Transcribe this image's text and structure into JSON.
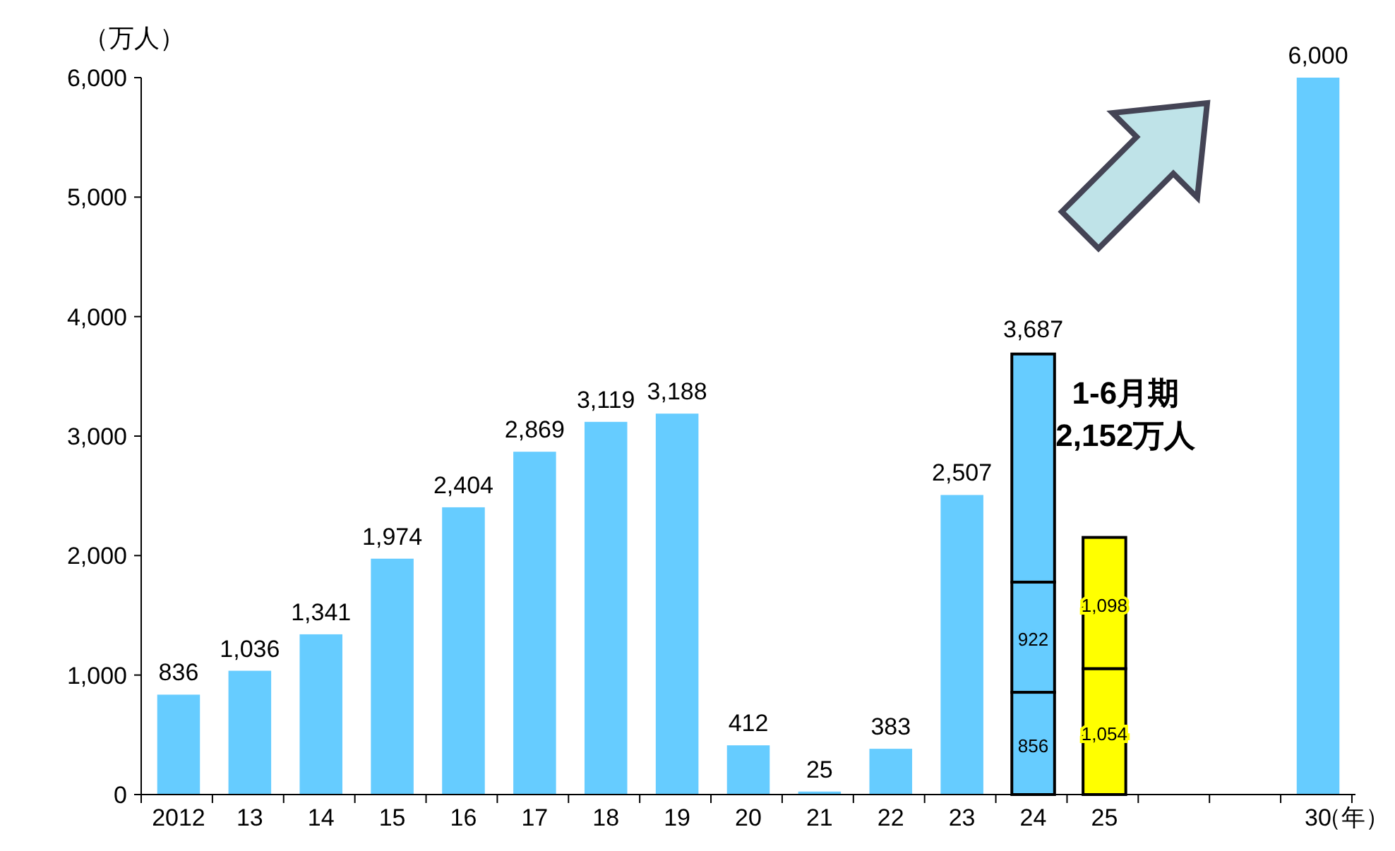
{
  "chart_data": {
    "type": "bar",
    "stacked": true,
    "ylabel": "（万人）",
    "xlabel": "（年）",
    "categories": [
      "2012",
      "13",
      "14",
      "15",
      "16",
      "17",
      "18",
      "19",
      "20",
      "21",
      "22",
      "23",
      "24",
      "25",
      null,
      null,
      "30"
    ],
    "ylim": [
      0,
      6000
    ],
    "yticks": [
      {
        "value": 0,
        "label": "0"
      },
      {
        "value": 1000,
        "label": "1,000"
      },
      {
        "value": 2000,
        "label": "2,000"
      },
      {
        "value": 3000,
        "label": "3,000"
      },
      {
        "value": 4000,
        "label": "4,000"
      },
      {
        "value": 5000,
        "label": "5,000"
      },
      {
        "value": 6000,
        "label": "6,000"
      }
    ],
    "grid": false,
    "series": [
      {
        "colors": [
          "#66ccff",
          "#66ccff",
          "#66ccff",
          "#66ccff",
          "#66ccff",
          "#66ccff",
          "#66ccff",
          "#66ccff",
          "#66ccff",
          "#66ccff",
          "#66ccff",
          "#66ccff",
          "#66ccff",
          "#ffff00",
          null,
          null,
          "#66ccff"
        ],
        "values": [
          836,
          1036,
          1341,
          1974,
          2404,
          2869,
          3119,
          3188,
          412,
          25,
          383,
          2507,
          856,
          1054,
          null,
          null,
          6000
        ],
        "value_labels": [
          "836",
          "1,036",
          "1,341",
          "1,974",
          "2,404",
          "2,869",
          "3,119",
          "3,188",
          "412",
          "25",
          "383",
          "2,507",
          "856",
          "1,054",
          null,
          null,
          "6,000"
        ]
      },
      {
        "colors": [
          null,
          null,
          null,
          null,
          null,
          null,
          null,
          null,
          null,
          null,
          null,
          null,
          "#66ccff",
          "#ffff00",
          null,
          null,
          null
        ],
        "values": [
          null,
          null,
          null,
          null,
          null,
          null,
          null,
          null,
          null,
          null,
          null,
          null,
          922,
          1098,
          null,
          null,
          null
        ],
        "value_labels": [
          null,
          null,
          null,
          null,
          null,
          null,
          null,
          null,
          null,
          null,
          null,
          null,
          "922",
          "1,098",
          null,
          null,
          null
        ]
      },
      {
        "color": "#66ccff",
        "values": [
          null,
          null,
          null,
          null,
          null,
          null,
          null,
          null,
          null,
          null,
          null,
          null,
          1909,
          null,
          null,
          null,
          null
        ]
      }
    ],
    "totals": [
      null,
      null,
      null,
      null,
      null,
      null,
      null,
      null,
      null,
      null,
      null,
      null,
      "3,687",
      null,
      null,
      null,
      null
    ],
    "annotations": [
      {
        "text": "1-6月期\n2,152万人",
        "x": "25",
        "y": 2152
      }
    ]
  }
}
